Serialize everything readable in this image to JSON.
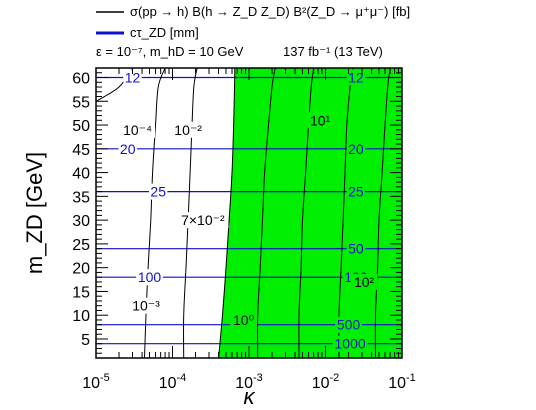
{
  "chart_data": {
    "type": "contour",
    "legend": [
      {
        "style": "black-line",
        "text": "σ(pp → h) B(h → Z_D Z_D) B²(Z_D → μ⁺μ⁻) [fb]"
      },
      {
        "style": "blue-line",
        "text": "cτ_ZD [mm]"
      }
    ],
    "params_line": {
      "left": "ε = 10⁻⁷, m_hD = 10 GeV",
      "right": "137 fb⁻¹ (13 TeV)"
    },
    "xlabel": "κ",
    "ylabel": "m_ZD [GeV]",
    "x_scale": "log",
    "xlim": [
      1e-05,
      0.1
    ],
    "ylim": [
      1,
      62
    ],
    "x_ticks": [
      {
        "value": 1e-05,
        "base": "10",
        "exp": "-5"
      },
      {
        "value": 0.0001,
        "base": "10",
        "exp": "-4"
      },
      {
        "value": 0.001,
        "base": "10",
        "exp": "-3"
      },
      {
        "value": 0.01,
        "base": "10",
        "exp": "-2"
      },
      {
        "value": 0.1,
        "base": "10",
        "exp": "-1"
      }
    ],
    "y_ticks": [
      "5",
      "10",
      "15",
      "20",
      "25",
      "30",
      "35",
      "40",
      "45",
      "50",
      "55",
      "60"
    ],
    "excluded_region": {
      "color": "#00ee00",
      "boundary": [
        {
          "x": 0.0004,
          "y": 1
        },
        {
          "x": 0.00045,
          "y": 10
        },
        {
          "x": 0.0005,
          "y": 20
        },
        {
          "x": 0.00055,
          "y": 30
        },
        {
          "x": 0.0006,
          "y": 40
        },
        {
          "x": 0.00063,
          "y": 50
        },
        {
          "x": 0.00065,
          "y": 60
        },
        {
          "x": 0.00065,
          "y": 62
        }
      ]
    },
    "ctau_lines": [
      {
        "label": "12",
        "y": 60
      },
      {
        "label": "20",
        "y": 45
      },
      {
        "label": "25",
        "y": 36
      },
      {
        "label": "50",
        "y": 24
      },
      {
        "label": "100",
        "y": 18
      },
      {
        "label": "500",
        "y": 8
      },
      {
        "label": "1000",
        "y": 4
      }
    ],
    "ctau_label_positions": [
      {
        "text": "12",
        "x": 3e-05,
        "y": 60
      },
      {
        "text": "20",
        "x": 2.6e-05,
        "y": 45
      },
      {
        "text": "25",
        "x": 6.5e-05,
        "y": 36
      },
      {
        "text": "100",
        "x": 5e-05,
        "y": 18
      },
      {
        "text": "12",
        "x": 0.025,
        "y": 60
      },
      {
        "text": "20",
        "x": 0.025,
        "y": 45
      },
      {
        "text": "25",
        "x": 0.025,
        "y": 36
      },
      {
        "text": "50",
        "x": 0.025,
        "y": 24
      },
      {
        "text": "100",
        "x": 0.025,
        "y": 18
      },
      {
        "text": "500",
        "x": 0.02,
        "y": 8
      },
      {
        "text": "1000",
        "x": 0.021,
        "y": 4
      }
    ],
    "xsec_contours": [
      {
        "label": "10⁻⁴",
        "points": [
          [
            1e-05,
            55
          ],
          [
            2e-05,
            58
          ],
          [
            3e-05,
            62
          ]
        ]
      },
      {
        "label": "10⁻³",
        "points": [
          [
            4.3e-05,
            1
          ],
          [
            4.5e-05,
            10
          ],
          [
            4.8e-05,
            20
          ],
          [
            5.2e-05,
            30
          ],
          [
            5.5e-05,
            40
          ],
          [
            6e-05,
            50
          ],
          [
            6.5e-05,
            58
          ],
          [
            8e-05,
            62
          ]
        ]
      },
      {
        "label": "10⁻²",
        "points": [
          [
            0.00014,
            1
          ],
          [
            0.00014,
            10
          ],
          [
            0.00015,
            20
          ],
          [
            0.00016,
            30
          ],
          [
            0.00017,
            40
          ],
          [
            0.00018,
            50
          ],
          [
            0.00019,
            58
          ],
          [
            0.00021,
            62
          ]
        ]
      },
      {
        "label": "7×10⁻²",
        "points": [
          [
            0.0004,
            1
          ],
          [
            0.00045,
            10
          ],
          [
            0.0005,
            20
          ],
          [
            0.00055,
            30
          ],
          [
            0.0006,
            40
          ],
          [
            0.00063,
            50
          ],
          [
            0.00065,
            60
          ],
          [
            0.00065,
            62
          ]
        ]
      },
      {
        "label": "10⁰",
        "points": [
          [
            0.0013,
            1
          ],
          [
            0.0013,
            10
          ],
          [
            0.0014,
            20
          ],
          [
            0.0015,
            30
          ],
          [
            0.0016,
            40
          ],
          [
            0.0018,
            50
          ],
          [
            0.002,
            58
          ],
          [
            0.0022,
            62
          ]
        ]
      },
      {
        "label": "10¹",
        "points": [
          [
            0.0045,
            1
          ],
          [
            0.0045,
            10
          ],
          [
            0.0048,
            20
          ],
          [
            0.005,
            30
          ],
          [
            0.0055,
            40
          ],
          [
            0.006,
            50
          ],
          [
            0.0065,
            58
          ],
          [
            0.007,
            62
          ]
        ]
      },
      {
        "label": "10²",
        "points": [
          [
            0.015,
            1
          ],
          [
            0.015,
            10
          ],
          [
            0.016,
            20
          ],
          [
            0.017,
            30
          ],
          [
            0.018,
            40
          ],
          [
            0.019,
            50
          ],
          [
            0.021,
            58
          ],
          [
            0.023,
            62
          ]
        ]
      },
      {
        "label": "",
        "points": [
          [
            0.045,
            1
          ],
          [
            0.045,
            10
          ],
          [
            0.048,
            20
          ],
          [
            0.05,
            30
          ],
          [
            0.055,
            40
          ],
          [
            0.06,
            50
          ],
          [
            0.065,
            58
          ],
          [
            0.07,
            62
          ]
        ]
      }
    ],
    "xsec_label_positions": [
      {
        "text": "10⁻⁴",
        "x": 3.5e-05,
        "y": 49
      },
      {
        "text": "10⁻²",
        "x": 0.00016,
        "y": 49
      },
      {
        "text": "7×10⁻²",
        "x": 0.00025,
        "y": 30
      },
      {
        "text": "10⁻³",
        "x": 4.5e-05,
        "y": 12
      },
      {
        "text": "10⁰",
        "x": 0.00085,
        "y": 9
      },
      {
        "text": "10¹",
        "x": 0.0085,
        "y": 51
      },
      {
        "text": "10²",
        "x": 0.032,
        "y": 17
      }
    ]
  }
}
